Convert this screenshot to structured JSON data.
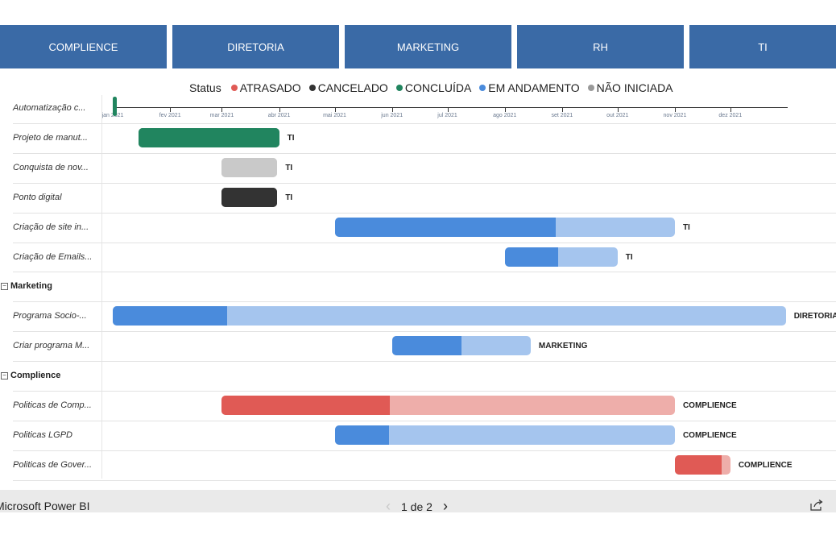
{
  "tabs": [
    "COMPLIENCE",
    "DIRETORIA",
    "MARKETING",
    "RH",
    "TI"
  ],
  "legend": {
    "title": "Status",
    "items": [
      {
        "label": "ATRASADO",
        "color": "#e05a55"
      },
      {
        "label": "CANCELADO",
        "color": "#333333"
      },
      {
        "label": "CONCLUÍDA",
        "color": "#21855f"
      },
      {
        "label": "EM ANDAMENTO",
        "color": "#4a8bdc"
      },
      {
        "label": "NÃO INICIADA",
        "color": "#999999"
      }
    ]
  },
  "axis": {
    "months": [
      "jan 2021",
      "fev 2021",
      "mar 2021",
      "abr 2021",
      "mai 2021",
      "jun 2021",
      "jul 2021",
      "ago 2021",
      "set 2021",
      "out 2021",
      "nov 2021",
      "dez 2021"
    ]
  },
  "rows": [
    {
      "type": "task",
      "label": "Automatização c...",
      "status": "CONCLUÍDA",
      "start": "2021-01-01",
      "end": "2021-01-03",
      "progress": 1.0,
      "owner": ""
    },
    {
      "type": "task",
      "label": "Projeto de manut...",
      "status": "CONCLUÍDA",
      "start": "2021-01-15",
      "end": "2021-04-01",
      "progress": 1.0,
      "owner": "TI"
    },
    {
      "type": "task",
      "label": "Conquista de nov...",
      "status": "NÃO INICIADA",
      "start": "2021-03-01",
      "end": "2021-03-31",
      "progress": 1.0,
      "owner": "TI"
    },
    {
      "type": "task",
      "label": "Ponto digital",
      "status": "CANCELADO",
      "start": "2021-03-01",
      "end": "2021-03-31",
      "progress": 1.0,
      "owner": "TI"
    },
    {
      "type": "task",
      "label": "Criação de site in...",
      "status": "EM ANDAMENTO",
      "start": "2021-05-01",
      "end": "2021-11-01",
      "progress": 0.65,
      "owner": "TI"
    },
    {
      "type": "task",
      "label": "Criação de Emails...",
      "status": "EM ANDAMENTO",
      "start": "2021-08-01",
      "end": "2021-10-01",
      "progress": 0.47,
      "owner": "TI"
    },
    {
      "type": "group",
      "label": "Marketing"
    },
    {
      "type": "task",
      "label": "Programa Socio-...",
      "status": "EM ANDAMENTO",
      "start": "2021-01-01",
      "end": "2021-12-31",
      "progress": 0.17,
      "owner": "DIRETORIA"
    },
    {
      "type": "task",
      "label": "Criar programa M...",
      "status": "EM ANDAMENTO",
      "start": "2021-06-01",
      "end": "2021-08-15",
      "progress": 0.5,
      "owner": "MARKETING"
    },
    {
      "type": "group",
      "label": "Complience"
    },
    {
      "type": "task",
      "label": "Politicas de Comp...",
      "status": "ATRASADO",
      "start": "2021-03-01",
      "end": "2021-11-01",
      "progress": 0.37,
      "owner": "COMPLIENCE"
    },
    {
      "type": "task",
      "label": "Politicas LGPD",
      "status": "EM ANDAMENTO",
      "start": "2021-05-01",
      "end": "2021-11-01",
      "progress": 0.16,
      "owner": "COMPLIENCE"
    },
    {
      "type": "task",
      "label": "Politicas de Gover...",
      "status": "ATRASADO",
      "start": "2021-11-01",
      "end": "2021-12-01",
      "progress": 0.85,
      "owner": "COMPLIENCE"
    }
  ],
  "footer": {
    "brand": "Microsoft Power BI",
    "page_indicator": "1 de 2"
  }
}
